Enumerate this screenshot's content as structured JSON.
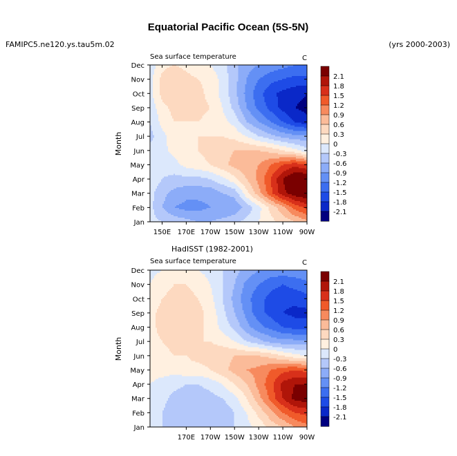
{
  "figure": {
    "title": "Equatorial Pacific Ocean (5S-5N)",
    "left_label": "FAMIPC5.ne120.ys.tau5m.02",
    "right_label": "(yrs 2000-2003)"
  },
  "colors": {
    "levels": [
      -2.1,
      -1.8,
      -1.5,
      -1.2,
      -0.9,
      -0.6,
      -0.3,
      0,
      0.3,
      0.6,
      0.9,
      1.2,
      1.5,
      1.8,
      2.1
    ],
    "palette": [
      "#00007f",
      "#0a28c8",
      "#1e4be6",
      "#3c6ef0",
      "#6490f5",
      "#8cacf8",
      "#b4c8fa",
      "#dce8fc",
      "#fff0e0",
      "#fdd9c0",
      "#fbbb99",
      "#f78a5e",
      "#f05a2a",
      "#d8301a",
      "#b01509",
      "#7a0000"
    ]
  },
  "chart_data": [
    {
      "type": "heatmap",
      "title": "",
      "left_subtitle": "Sea surface temperature",
      "units": "C",
      "ylabel": "Month",
      "xlabel": "",
      "xticks": [
        "150E",
        "170E",
        "170W",
        "150W",
        "130W",
        "110W",
        "90W"
      ],
      "yticks": [
        "Jan",
        "Feb",
        "Mar",
        "Apr",
        "May",
        "Jun",
        "Jul",
        "Aug",
        "Sep",
        "Oct",
        "Nov",
        "Dec"
      ],
      "colorbar_labels": [
        "2.1",
        "1.8",
        "1.5",
        "1.2",
        "0.9",
        "0.6",
        "0.3",
        "0",
        "-0.3",
        "-0.6",
        "-0.9",
        "-1.2",
        "-1.5",
        "-1.8",
        "-2.1"
      ],
      "x_range_deg_east": [
        140,
        270
      ],
      "months": [
        "Jan",
        "Feb",
        "Mar",
        "Apr",
        "May",
        "Jun",
        "Jul",
        "Aug",
        "Sep",
        "Oct",
        "Nov",
        "Dec"
      ],
      "longitudes_deg_east": [
        140,
        150,
        160,
        170,
        180,
        190,
        200,
        210,
        220,
        230,
        240,
        250,
        260,
        270
      ],
      "values": [
        [
          -0.2,
          -0.3,
          -0.4,
          -0.5,
          -0.6,
          -0.6,
          -0.5,
          -0.4,
          -0.2,
          0.0,
          0.2,
          0.4,
          0.6,
          0.8
        ],
        [
          -0.2,
          -0.6,
          -0.9,
          -1.0,
          -1.0,
          -0.9,
          -0.9,
          -0.8,
          -0.5,
          -0.1,
          0.4,
          0.8,
          1.3,
          1.6
        ],
        [
          -0.2,
          -0.5,
          -0.7,
          -0.8,
          -0.8,
          -0.8,
          -0.6,
          -0.5,
          0.2,
          0.8,
          1.4,
          2.0,
          2.3,
          2.4
        ],
        [
          -0.1,
          -0.3,
          -0.4,
          -0.4,
          -0.4,
          -0.3,
          -0.1,
          0.2,
          0.6,
          1.0,
          1.5,
          2.1,
          2.5,
          2.5
        ],
        [
          -0.1,
          -0.2,
          -0.1,
          0.1,
          0.2,
          0.3,
          0.5,
          0.7,
          0.8,
          0.9,
          1.2,
          1.5,
          1.7,
          1.5
        ],
        [
          -0.2,
          -0.1,
          0.1,
          0.2,
          0.3,
          0.4,
          0.5,
          0.6,
          0.6,
          0.6,
          0.5,
          0.3,
          0.1,
          -0.2
        ],
        [
          -0.4,
          -0.1,
          0.2,
          0.2,
          0.3,
          0.3,
          0.3,
          0.2,
          0.0,
          -0.3,
          -0.5,
          -0.7,
          -0.8,
          -0.8
        ],
        [
          -0.3,
          0.1,
          0.3,
          0.3,
          0.3,
          0.2,
          0.1,
          -0.1,
          -0.6,
          -0.9,
          -1.2,
          -1.5,
          -1.8,
          -2.0
        ],
        [
          -0.2,
          0.2,
          0.4,
          0.5,
          0.4,
          0.3,
          0.0,
          -0.4,
          -0.9,
          -1.3,
          -1.6,
          -1.9,
          -2.1,
          -2.2
        ],
        [
          -0.1,
          0.4,
          0.6,
          0.5,
          0.4,
          0.2,
          -0.1,
          -0.5,
          -1.0,
          -1.4,
          -1.7,
          -1.9,
          -2.0,
          -2.1
        ],
        [
          -0.1,
          0.4,
          0.6,
          0.4,
          0.3,
          0.2,
          -0.1,
          -0.5,
          -0.9,
          -1.2,
          -1.4,
          -1.5,
          -1.6,
          -1.6
        ],
        [
          -0.2,
          0.2,
          0.3,
          0.2,
          0.1,
          0.0,
          -0.2,
          -0.5,
          -0.8,
          -0.9,
          -1.0,
          -1.1,
          -1.2,
          -1.2
        ]
      ]
    },
    {
      "type": "heatmap",
      "title": "HadISST (1982-2001)",
      "left_subtitle": "Sea surface temperature",
      "units": "C",
      "ylabel": "Month",
      "xlabel": "",
      "xticks": [
        "170E",
        "170W",
        "150W",
        "130W",
        "110W",
        "90W"
      ],
      "yticks": [
        "Jan",
        "Feb",
        "Mar",
        "Apr",
        "May",
        "Jun",
        "Jul",
        "Aug",
        "Sep",
        "Oct",
        "Nov",
        "Dec"
      ],
      "colorbar_labels": [
        "2.1",
        "1.8",
        "1.5",
        "1.2",
        "0.9",
        "0.6",
        "0.3",
        "0",
        "-0.3",
        "-0.6",
        "-0.9",
        "-1.2",
        "-1.5",
        "-1.8",
        "-2.1"
      ],
      "x_range_deg_east": [
        140,
        270
      ],
      "months": [
        "Jan",
        "Feb",
        "Mar",
        "Apr",
        "May",
        "Jun",
        "Jul",
        "Aug",
        "Sep",
        "Oct",
        "Nov",
        "Dec"
      ],
      "longitudes_deg_east": [
        140,
        150,
        160,
        170,
        180,
        190,
        200,
        210,
        220,
        230,
        240,
        250,
        260,
        270
      ],
      "values": [
        [
          -0.1,
          -0.3,
          -0.4,
          -0.5,
          -0.5,
          -0.5,
          -0.4,
          -0.3,
          -0.1,
          0.1,
          0.4,
          0.6,
          0.9,
          1.1
        ],
        [
          -0.1,
          -0.3,
          -0.5,
          -0.6,
          -0.6,
          -0.6,
          -0.5,
          -0.3,
          0.0,
          0.4,
          0.8,
          1.2,
          1.5,
          1.6
        ],
        [
          -0.1,
          -0.2,
          -0.4,
          -0.5,
          -0.5,
          -0.4,
          -0.3,
          -0.1,
          0.3,
          0.8,
          1.3,
          1.8,
          2.2,
          2.3
        ],
        [
          0.0,
          -0.1,
          -0.2,
          -0.3,
          -0.3,
          -0.2,
          0.0,
          0.3,
          0.6,
          1.0,
          1.4,
          1.9,
          2.1,
          2.1
        ],
        [
          0.1,
          0.1,
          0.1,
          0.2,
          0.2,
          0.3,
          0.5,
          0.7,
          0.9,
          1.0,
          1.2,
          1.4,
          1.5,
          1.4
        ],
        [
          0.1,
          0.2,
          0.3,
          0.3,
          0.4,
          0.4,
          0.5,
          0.6,
          0.6,
          0.6,
          0.5,
          0.3,
          0.1,
          0.0
        ],
        [
          0.2,
          0.3,
          0.4,
          0.4,
          0.3,
          0.3,
          0.2,
          0.0,
          -0.3,
          -0.5,
          -0.7,
          -0.8,
          -0.8,
          -0.8
        ],
        [
          0.2,
          0.4,
          0.4,
          0.5,
          0.4,
          0.2,
          -0.1,
          -0.4,
          -0.8,
          -1.1,
          -1.3,
          -1.5,
          -1.6,
          -1.6
        ],
        [
          0.2,
          0.4,
          0.5,
          0.6,
          0.4,
          0.2,
          -0.2,
          -0.6,
          -1.0,
          -1.4,
          -1.6,
          -1.8,
          -1.9,
          -1.9
        ],
        [
          0.1,
          0.3,
          0.4,
          0.4,
          0.3,
          0.1,
          -0.3,
          -0.7,
          -1.1,
          -1.4,
          -1.6,
          -1.7,
          -1.7,
          -1.6
        ],
        [
          0.0,
          0.2,
          0.3,
          0.3,
          0.2,
          0.0,
          -0.3,
          -0.6,
          -1.0,
          -1.2,
          -1.4,
          -1.5,
          -1.4,
          -1.3
        ],
        [
          -0.1,
          0.0,
          0.1,
          0.1,
          0.0,
          -0.1,
          -0.3,
          -0.5,
          -0.7,
          -0.9,
          -1.0,
          -1.0,
          -1.0,
          -0.9
        ]
      ]
    }
  ]
}
